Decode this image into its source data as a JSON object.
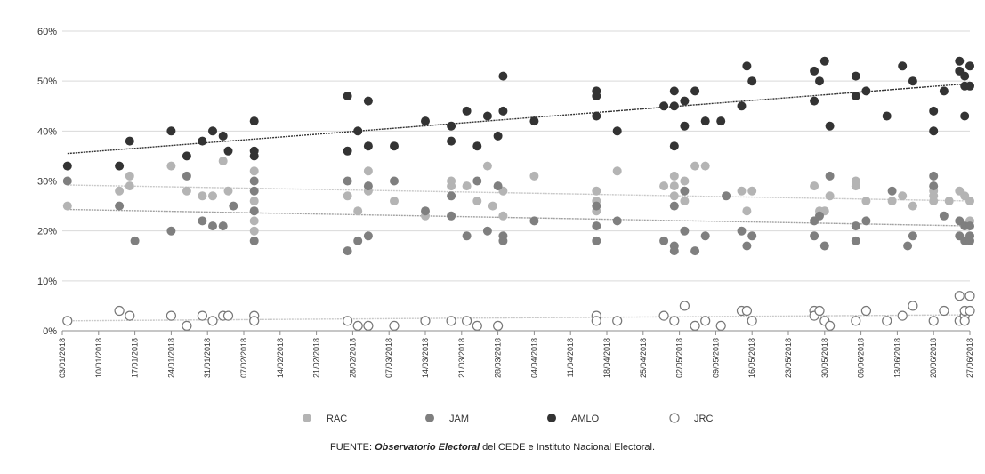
{
  "chart_data": {
    "type": "scatter",
    "y_ticks": [
      "0%",
      "10%",
      "20%",
      "30%",
      "40%",
      "50%",
      "60%"
    ],
    "ylim": [
      0,
      60
    ],
    "x_ticks": [
      "03/01/2018",
      "10/01/2018",
      "17/01/2018",
      "24/01/2018",
      "31/01/2018",
      "07/02/2018",
      "14/02/2018",
      "21/02/2018",
      "28/02/2018",
      "07/03/2018",
      "14/03/2018",
      "21/03/2018",
      "28/03/2018",
      "04/04/2018",
      "11/04/2018",
      "18/04/2018",
      "25/04/2018",
      "02/05/2018",
      "09/05/2018",
      "16/05/2018",
      "23/05/2018",
      "30/05/2018",
      "06/06/2018",
      "13/06/2018",
      "20/06/2018",
      "27/06/2018"
    ],
    "xlim": [
      "2018-01-03",
      "2018-06-27"
    ],
    "grid": "horizontal",
    "legend_position": "bottom",
    "series": [
      {
        "name": "RAC",
        "color": "#b4b4b4",
        "marker": "filled",
        "points": [
          [
            "2018-01-04",
            25
          ],
          [
            "2018-01-14",
            28
          ],
          [
            "2018-01-16",
            31
          ],
          [
            "2018-01-16",
            29
          ],
          [
            "2018-01-24",
            33
          ],
          [
            "2018-01-27",
            28
          ],
          [
            "2018-01-30",
            27
          ],
          [
            "2018-02-01",
            27
          ],
          [
            "2018-02-03",
            34
          ],
          [
            "2018-02-04",
            28
          ],
          [
            "2018-02-09",
            32
          ],
          [
            "2018-02-09",
            30
          ],
          [
            "2018-02-09",
            26
          ],
          [
            "2018-02-09",
            24
          ],
          [
            "2018-02-09",
            22
          ],
          [
            "2018-02-09",
            20
          ],
          [
            "2018-02-27",
            27
          ],
          [
            "2018-03-01",
            24
          ],
          [
            "2018-03-03",
            32
          ],
          [
            "2018-03-03",
            28
          ],
          [
            "2018-03-08",
            26
          ],
          [
            "2018-03-14",
            23
          ],
          [
            "2018-03-19",
            29
          ],
          [
            "2018-03-19",
            30
          ],
          [
            "2018-03-22",
            29
          ],
          [
            "2018-03-24",
            26
          ],
          [
            "2018-03-26",
            33
          ],
          [
            "2018-03-27",
            25
          ],
          [
            "2018-03-29",
            28
          ],
          [
            "2018-03-29",
            23
          ],
          [
            "2018-04-04",
            31
          ],
          [
            "2018-04-16",
            28
          ],
          [
            "2018-04-16",
            26
          ],
          [
            "2018-04-16",
            24
          ],
          [
            "2018-04-20",
            32
          ],
          [
            "2018-04-29",
            29
          ],
          [
            "2018-05-01",
            31
          ],
          [
            "2018-05-01",
            29
          ],
          [
            "2018-05-01",
            27
          ],
          [
            "2018-05-03",
            30
          ],
          [
            "2018-05-03",
            26
          ],
          [
            "2018-05-05",
            33
          ],
          [
            "2018-05-07",
            33
          ],
          [
            "2018-05-14",
            28
          ],
          [
            "2018-05-15",
            24
          ],
          [
            "2018-05-16",
            28
          ],
          [
            "2018-05-28",
            29
          ],
          [
            "2018-05-29",
            24
          ],
          [
            "2018-05-30",
            24
          ],
          [
            "2018-05-31",
            27
          ],
          [
            "2018-06-05",
            30
          ],
          [
            "2018-06-05",
            29
          ],
          [
            "2018-06-07",
            26
          ],
          [
            "2018-06-12",
            26
          ],
          [
            "2018-06-14",
            27
          ],
          [
            "2018-06-16",
            25
          ],
          [
            "2018-06-20",
            28
          ],
          [
            "2018-06-20",
            27
          ],
          [
            "2018-06-20",
            26
          ],
          [
            "2018-06-23",
            26
          ],
          [
            "2018-06-25",
            28
          ],
          [
            "2018-06-26",
            27
          ],
          [
            "2018-06-27",
            26
          ],
          [
            "2018-06-27",
            22
          ]
        ]
      },
      {
        "name": "JAM",
        "color": "#7f7f7f",
        "marker": "filled",
        "points": [
          [
            "2018-01-04",
            30
          ],
          [
            "2018-01-14",
            25
          ],
          [
            "2018-01-17",
            18
          ],
          [
            "2018-01-24",
            20
          ],
          [
            "2018-01-27",
            31
          ],
          [
            "2018-01-30",
            22
          ],
          [
            "2018-02-01",
            21
          ],
          [
            "2018-02-03",
            21
          ],
          [
            "2018-02-05",
            25
          ],
          [
            "2018-02-09",
            30
          ],
          [
            "2018-02-09",
            28
          ],
          [
            "2018-02-09",
            24
          ],
          [
            "2018-02-09",
            18
          ],
          [
            "2018-02-27",
            16
          ],
          [
            "2018-02-27",
            30
          ],
          [
            "2018-03-01",
            18
          ],
          [
            "2018-03-03",
            19
          ],
          [
            "2018-03-03",
            29
          ],
          [
            "2018-03-08",
            30
          ],
          [
            "2018-03-14",
            24
          ],
          [
            "2018-03-19",
            27
          ],
          [
            "2018-03-19",
            23
          ],
          [
            "2018-03-22",
            19
          ],
          [
            "2018-03-24",
            30
          ],
          [
            "2018-03-26",
            20
          ],
          [
            "2018-03-28",
            29
          ],
          [
            "2018-03-29",
            19
          ],
          [
            "2018-03-29",
            18
          ],
          [
            "2018-04-04",
            22
          ],
          [
            "2018-04-16",
            25
          ],
          [
            "2018-04-16",
            21
          ],
          [
            "2018-04-16",
            18
          ],
          [
            "2018-04-20",
            22
          ],
          [
            "2018-04-29",
            18
          ],
          [
            "2018-05-01",
            17
          ],
          [
            "2018-05-01",
            25
          ],
          [
            "2018-05-01",
            16
          ],
          [
            "2018-05-03",
            28
          ],
          [
            "2018-05-03",
            20
          ],
          [
            "2018-05-05",
            16
          ],
          [
            "2018-05-07",
            19
          ],
          [
            "2018-05-11",
            27
          ],
          [
            "2018-05-14",
            20
          ],
          [
            "2018-05-15",
            17
          ],
          [
            "2018-05-16",
            19
          ],
          [
            "2018-05-28",
            22
          ],
          [
            "2018-05-28",
            19
          ],
          [
            "2018-05-29",
            23
          ],
          [
            "2018-05-30",
            17
          ],
          [
            "2018-05-31",
            31
          ],
          [
            "2018-06-05",
            21
          ],
          [
            "2018-06-05",
            18
          ],
          [
            "2018-06-07",
            22
          ],
          [
            "2018-06-12",
            28
          ],
          [
            "2018-06-15",
            17
          ],
          [
            "2018-06-16",
            19
          ],
          [
            "2018-06-20",
            31
          ],
          [
            "2018-06-20",
            29
          ],
          [
            "2018-06-22",
            23
          ],
          [
            "2018-06-25",
            19
          ],
          [
            "2018-06-25",
            22
          ],
          [
            "2018-06-26",
            21
          ],
          [
            "2018-06-26",
            18
          ],
          [
            "2018-06-27",
            19
          ],
          [
            "2018-06-27",
            18
          ],
          [
            "2018-06-27",
            21
          ]
        ]
      },
      {
        "name": "AMLO",
        "color": "#333333",
        "marker": "filled",
        "points": [
          [
            "2018-01-04",
            33
          ],
          [
            "2018-01-14",
            33
          ],
          [
            "2018-01-16",
            38
          ],
          [
            "2018-01-24",
            40
          ],
          [
            "2018-01-27",
            35
          ],
          [
            "2018-01-30",
            38
          ],
          [
            "2018-02-01",
            40
          ],
          [
            "2018-02-03",
            39
          ],
          [
            "2018-02-04",
            36
          ],
          [
            "2018-02-09",
            42
          ],
          [
            "2018-02-09",
            36
          ],
          [
            "2018-02-09",
            35
          ],
          [
            "2018-02-27",
            47
          ],
          [
            "2018-02-27",
            36
          ],
          [
            "2018-03-01",
            40
          ],
          [
            "2018-03-03",
            46
          ],
          [
            "2018-03-03",
            37
          ],
          [
            "2018-03-08",
            37
          ],
          [
            "2018-03-14",
            42
          ],
          [
            "2018-03-19",
            41
          ],
          [
            "2018-03-19",
            38
          ],
          [
            "2018-03-22",
            44
          ],
          [
            "2018-03-24",
            37
          ],
          [
            "2018-03-26",
            43
          ],
          [
            "2018-03-28",
            39
          ],
          [
            "2018-03-29",
            51
          ],
          [
            "2018-03-29",
            44
          ],
          [
            "2018-04-04",
            42
          ],
          [
            "2018-04-16",
            48
          ],
          [
            "2018-04-16",
            47
          ],
          [
            "2018-04-16",
            43
          ],
          [
            "2018-04-20",
            40
          ],
          [
            "2018-04-29",
            45
          ],
          [
            "2018-05-01",
            48
          ],
          [
            "2018-05-01",
            45
          ],
          [
            "2018-05-01",
            37
          ],
          [
            "2018-05-03",
            46
          ],
          [
            "2018-05-03",
            41
          ],
          [
            "2018-05-05",
            48
          ],
          [
            "2018-05-07",
            42
          ],
          [
            "2018-05-10",
            42
          ],
          [
            "2018-05-14",
            45
          ],
          [
            "2018-05-15",
            53
          ],
          [
            "2018-05-16",
            50
          ],
          [
            "2018-05-28",
            52
          ],
          [
            "2018-05-28",
            46
          ],
          [
            "2018-05-29",
            50
          ],
          [
            "2018-05-30",
            54
          ],
          [
            "2018-05-31",
            41
          ],
          [
            "2018-06-05",
            51
          ],
          [
            "2018-06-05",
            47
          ],
          [
            "2018-06-07",
            48
          ],
          [
            "2018-06-11",
            43
          ],
          [
            "2018-06-14",
            53
          ],
          [
            "2018-06-16",
            50
          ],
          [
            "2018-06-20",
            44
          ],
          [
            "2018-06-20",
            40
          ],
          [
            "2018-06-22",
            48
          ],
          [
            "2018-06-25",
            52
          ],
          [
            "2018-06-25",
            54
          ],
          [
            "2018-06-26",
            51
          ],
          [
            "2018-06-26",
            49
          ],
          [
            "2018-06-26",
            43
          ],
          [
            "2018-06-27",
            53
          ],
          [
            "2018-06-27",
            49
          ]
        ]
      },
      {
        "name": "JRC",
        "color": "#777777",
        "marker": "hollow",
        "points": [
          [
            "2018-01-04",
            2
          ],
          [
            "2018-01-14",
            4
          ],
          [
            "2018-01-16",
            3
          ],
          [
            "2018-01-24",
            3
          ],
          [
            "2018-01-27",
            1
          ],
          [
            "2018-01-30",
            3
          ],
          [
            "2018-02-01",
            2
          ],
          [
            "2018-02-03",
            3
          ],
          [
            "2018-02-04",
            3
          ],
          [
            "2018-02-09",
            3
          ],
          [
            "2018-02-09",
            2
          ],
          [
            "2018-02-27",
            2
          ],
          [
            "2018-03-01",
            1
          ],
          [
            "2018-03-03",
            1
          ],
          [
            "2018-03-08",
            1
          ],
          [
            "2018-03-14",
            2
          ],
          [
            "2018-03-19",
            2
          ],
          [
            "2018-03-22",
            2
          ],
          [
            "2018-03-24",
            1
          ],
          [
            "2018-03-28",
            1
          ],
          [
            "2018-04-16",
            3
          ],
          [
            "2018-04-16",
            2
          ],
          [
            "2018-04-20",
            2
          ],
          [
            "2018-04-29",
            3
          ],
          [
            "2018-05-01",
            2
          ],
          [
            "2018-05-03",
            5
          ],
          [
            "2018-05-05",
            1
          ],
          [
            "2018-05-07",
            2
          ],
          [
            "2018-05-10",
            1
          ],
          [
            "2018-05-14",
            4
          ],
          [
            "2018-05-15",
            4
          ],
          [
            "2018-05-16",
            2
          ],
          [
            "2018-05-28",
            4
          ],
          [
            "2018-05-28",
            3
          ],
          [
            "2018-05-29",
            4
          ],
          [
            "2018-05-30",
            2
          ],
          [
            "2018-05-31",
            1
          ],
          [
            "2018-06-05",
            2
          ],
          [
            "2018-06-07",
            4
          ],
          [
            "2018-06-11",
            2
          ],
          [
            "2018-06-14",
            3
          ],
          [
            "2018-06-16",
            5
          ],
          [
            "2018-06-20",
            2
          ],
          [
            "2018-06-22",
            4
          ],
          [
            "2018-06-25",
            2
          ],
          [
            "2018-06-25",
            7
          ],
          [
            "2018-06-26",
            3
          ],
          [
            "2018-06-26",
            4
          ],
          [
            "2018-06-27",
            7
          ],
          [
            "2018-06-27",
            4
          ],
          [
            "2018-06-26",
            2
          ]
        ]
      }
    ],
    "trend_lines": [
      {
        "series": "AMLO",
        "start": [
          "2018-01-04",
          35.5
        ],
        "end": [
          "2018-06-27",
          49.5
        ],
        "color": "#333333"
      },
      {
        "series": "RAC",
        "start": [
          "2018-01-04",
          29.2
        ],
        "end": [
          "2018-06-27",
          26.0
        ],
        "color": "#c8c8c8"
      },
      {
        "series": "JAM",
        "start": [
          "2018-01-04",
          24.3
        ],
        "end": [
          "2018-06-27",
          21.0
        ],
        "color": "#a0a0a0"
      },
      {
        "series": "JRC",
        "start": [
          "2018-01-04",
          2.0
        ],
        "end": [
          "2018-06-27",
          3.2
        ],
        "color": "#c8c8c8"
      }
    ]
  },
  "legend": {
    "items": [
      {
        "label": "RAC",
        "color": "#b4b4b4",
        "marker": "filled"
      },
      {
        "label": "JAM",
        "color": "#7f7f7f",
        "marker": "filled"
      },
      {
        "label": "AMLO",
        "color": "#333333",
        "marker": "filled"
      },
      {
        "label": "JRC",
        "color": "#777777",
        "marker": "hollow"
      }
    ]
  },
  "source": {
    "prefix": "FUENTE: ",
    "emphasis": "Observatorio Electoral",
    "suffix": " del CEDE e Instituto Nacional Electoral."
  }
}
